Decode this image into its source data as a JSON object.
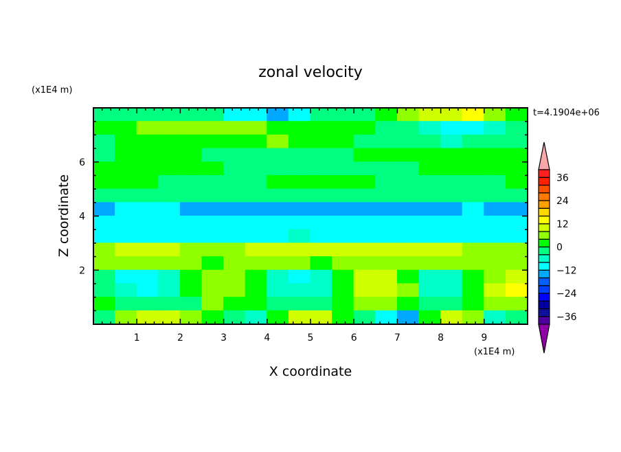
{
  "chart_data": {
    "type": "heatmap",
    "title": "zonal velocity",
    "xlabel": "X coordinate",
    "ylabel": "Z coordinate",
    "x_unit_label": "(x1E4 m)",
    "y_unit_label": "(x1E4 m)",
    "time_label": "t=4.1904e+06",
    "xlim": [
      0,
      10
    ],
    "ylim": [
      0,
      8
    ],
    "x_ticks": [
      "1",
      "2",
      "3",
      "4",
      "5",
      "6",
      "7",
      "8",
      "9"
    ],
    "y_ticks": [
      "2",
      "4",
      "6"
    ],
    "grid": false,
    "legend": "right",
    "colorbar": {
      "min": -40,
      "max": 40,
      "step": 4,
      "labels": [
        "36",
        "24",
        "12",
        "0",
        "-12",
        "-24",
        "-36"
      ],
      "colors": [
        "#5000a0",
        "#1010a0",
        "#0000a0",
        "#0000ff",
        "#0040ff",
        "#0060ff",
        "#00a8ff",
        "#00ffff",
        "#00ffc8",
        "#00ff80",
        "#00ff00",
        "#90ff00",
        "#d0ff00",
        "#ffff00",
        "#ffd800",
        "#ffa000",
        "#ff7800",
        "#ff5000",
        "#ff2000",
        "#ff2020"
      ],
      "over_color": "#f8a8a8",
      "under_color": "#9000a8"
    },
    "grid_dx": 0.5,
    "grid_dz": 0.5,
    "values_top_to_bottom": [
      [
        -2,
        -2,
        -2,
        -2,
        -2,
        -2,
        -10,
        -10,
        -14,
        -10,
        -2,
        -2,
        -2,
        2,
        6,
        10,
        10,
        14,
        6,
        2
      ],
      [
        2,
        2,
        6,
        6,
        6,
        6,
        6,
        6,
        2,
        2,
        2,
        2,
        2,
        -2,
        -2,
        -6,
        -10,
        -10,
        -6,
        -2
      ],
      [
        -2,
        2,
        2,
        2,
        2,
        2,
        2,
        2,
        6,
        2,
        2,
        2,
        -2,
        -2,
        -2,
        -2,
        -6,
        -2,
        -2,
        -2
      ],
      [
        -2,
        2,
        2,
        2,
        2,
        -2,
        -2,
        -2,
        -2,
        -2,
        -2,
        -2,
        2,
        2,
        2,
        2,
        2,
        2,
        2,
        2
      ],
      [
        2,
        2,
        2,
        2,
        2,
        2,
        -2,
        -2,
        -2,
        -2,
        -2,
        -2,
        -2,
        -2,
        -2,
        2,
        2,
        2,
        2,
        2
      ],
      [
        2,
        2,
        2,
        -2,
        -2,
        -2,
        -2,
        -2,
        2,
        2,
        2,
        2,
        2,
        -2,
        -2,
        -2,
        -2,
        -2,
        -2,
        2
      ],
      [
        -2,
        -2,
        -2,
        -2,
        -2,
        -2,
        -2,
        -2,
        -2,
        -2,
        -2,
        -2,
        -2,
        -2,
        -2,
        -2,
        -2,
        -2,
        -2,
        -2
      ],
      [
        -14,
        -10,
        -10,
        -10,
        -14,
        -14,
        -14,
        -14,
        -14,
        -14,
        -14,
        -14,
        -14,
        -14,
        -14,
        -14,
        -14,
        -10,
        -14,
        -14
      ],
      [
        -10,
        -10,
        -10,
        -10,
        -10,
        -10,
        -10,
        -10,
        -10,
        -10,
        -10,
        -10,
        -10,
        -10,
        -10,
        -10,
        -10,
        -10,
        -10,
        -10
      ],
      [
        -10,
        -10,
        -10,
        -10,
        -10,
        -10,
        -10,
        -10,
        -10,
        -6,
        -10,
        -10,
        -10,
        -10,
        -10,
        -10,
        -10,
        -10,
        -10,
        -10
      ],
      [
        6,
        10,
        10,
        10,
        6,
        6,
        6,
        10,
        10,
        10,
        10,
        10,
        10,
        10,
        10,
        10,
        10,
        6,
        6,
        6
      ],
      [
        6,
        6,
        6,
        6,
        6,
        2,
        6,
        6,
        6,
        6,
        2,
        6,
        6,
        6,
        6,
        6,
        6,
        6,
        6,
        6
      ],
      [
        -2,
        -10,
        -10,
        -6,
        2,
        6,
        6,
        2,
        -6,
        -10,
        -6,
        2,
        10,
        10,
        2,
        -6,
        -6,
        2,
        6,
        10
      ],
      [
        -2,
        -6,
        -10,
        -6,
        2,
        6,
        6,
        2,
        -6,
        -6,
        -6,
        2,
        10,
        10,
        6,
        -6,
        -6,
        2,
        10,
        14
      ],
      [
        2,
        -2,
        -2,
        -2,
        -2,
        6,
        2,
        2,
        -2,
        -2,
        -2,
        2,
        6,
        6,
        2,
        -2,
        -2,
        2,
        6,
        6
      ],
      [
        -2,
        6,
        10,
        10,
        6,
        2,
        -2,
        -6,
        2,
        10,
        10,
        2,
        -2,
        -10,
        -14,
        2,
        10,
        6,
        -6,
        -2
      ]
    ]
  }
}
